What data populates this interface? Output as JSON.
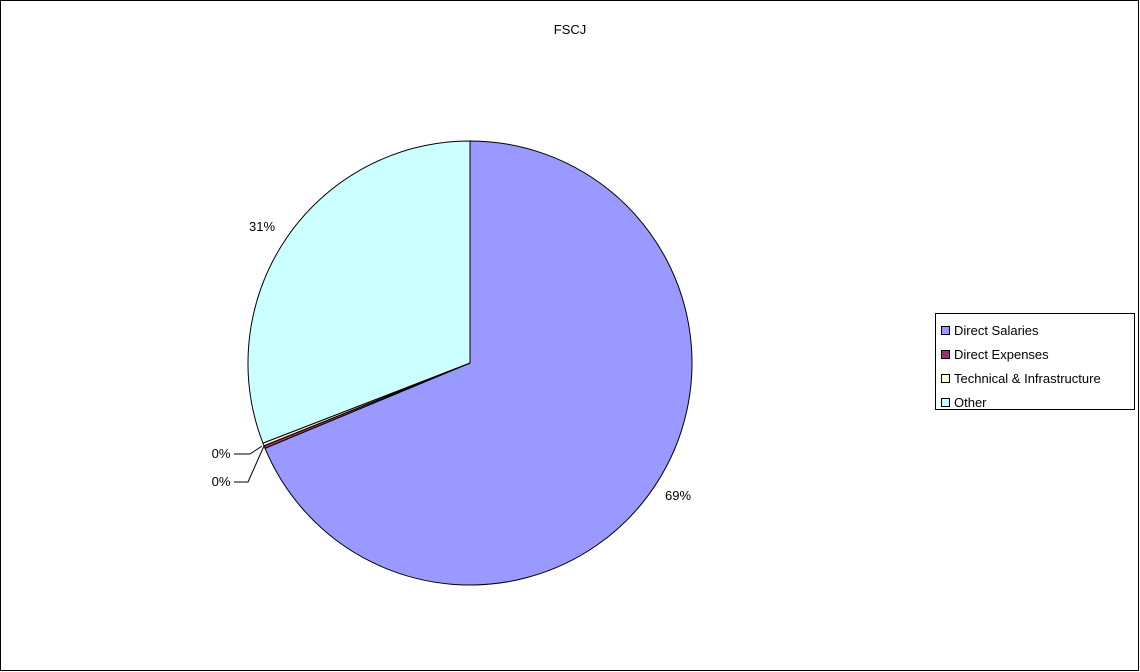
{
  "chart_data": {
    "type": "pie",
    "title": "FSCJ",
    "categories": [
      "Direct Salaries",
      "Direct Expenses",
      "Technical & Infrastructure",
      "Other"
    ],
    "values": [
      69,
      0.2,
      0.2,
      31
    ],
    "labels": [
      "69%",
      "0%",
      "0%",
      "31%"
    ],
    "colors": [
      "#9999ff",
      "#993366",
      "#ffffcc",
      "#ccffff"
    ],
    "legend": "right"
  }
}
